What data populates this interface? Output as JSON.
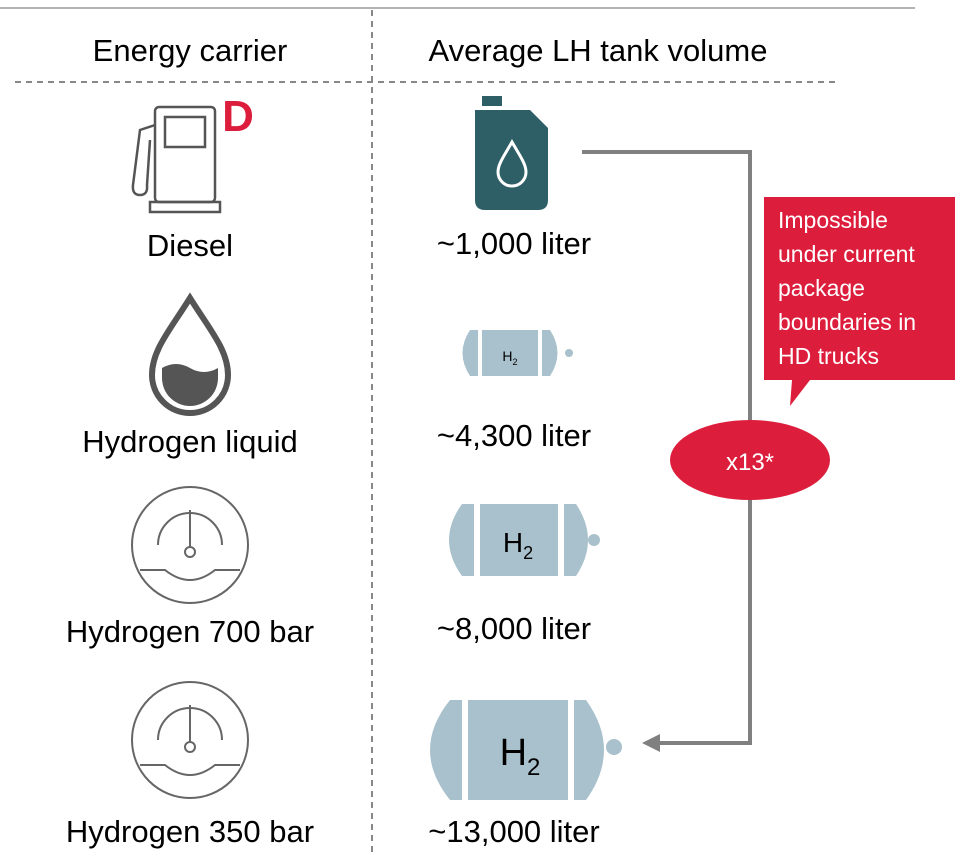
{
  "headers": {
    "carrier": "Energy carrier",
    "volume": "Average LH tank volume"
  },
  "rows": [
    {
      "carrier": "Diesel",
      "volume": "~1,000 liter",
      "icon_text": "D"
    },
    {
      "carrier": "Hydrogen liquid",
      "volume": "~4,300 liter",
      "tank_label": {
        "main": "H",
        "sub": "2"
      }
    },
    {
      "carrier": "Hydrogen 700 bar",
      "volume": "~8,000 liter",
      "tank_label": {
        "main": "H",
        "sub": "2"
      }
    },
    {
      "carrier": "Hydrogen 350 bar",
      "volume": "~13,000 liter",
      "tank_label": {
        "main": "H",
        "sub": "2"
      }
    }
  ],
  "multiplier": "x13*",
  "callout": [
    "Impossible",
    "under current",
    "package",
    "boundaries in",
    "HD trucks"
  ]
}
